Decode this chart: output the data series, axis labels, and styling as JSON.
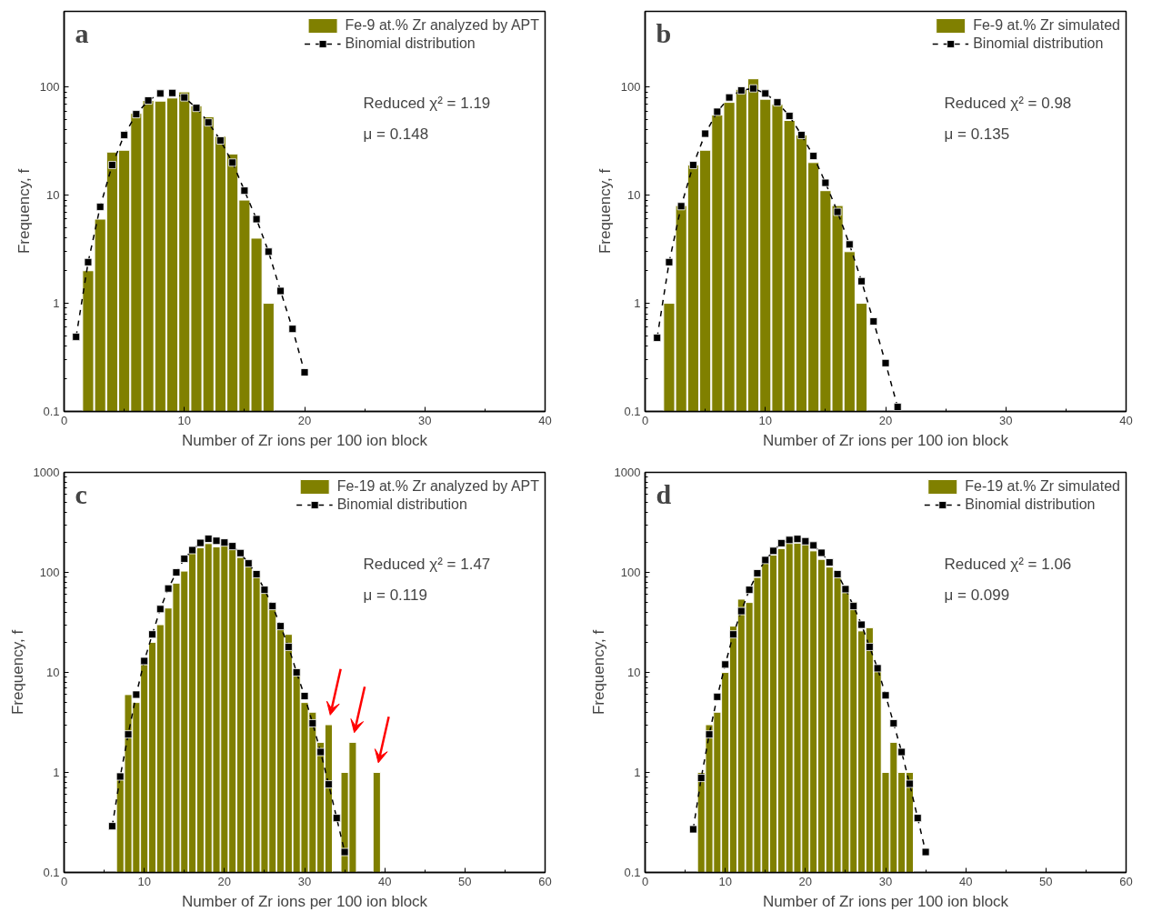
{
  "chart_data": [
    {
      "type": "bar",
      "title": "a",
      "xlabel": "Number of Zr ions per 100 ion block",
      "ylabel": "Frequency, f",
      "log": "y",
      "grid": false,
      "legend": "top right",
      "xlim": [
        0,
        40
      ],
      "ylim": [
        0.1,
        500
      ],
      "xticks": [
        0,
        10,
        20,
        30,
        40
      ],
      "yticks": [
        0.1,
        1,
        10,
        100
      ],
      "annotations": [
        "Reduced χ² = 1.19",
        "μ = 0.148"
      ],
      "series": [
        {
          "name": "Fe-9 at.% Zr analyzed by APT",
          "color": "#808000",
          "x": [
            2,
            3,
            4,
            5,
            6,
            7,
            8,
            9,
            10,
            11,
            12,
            13,
            14,
            15,
            16,
            17
          ],
          "values": [
            2,
            6,
            25,
            26,
            57,
            75,
            74,
            79,
            90,
            67,
            53,
            35,
            24,
            9,
            4,
            1
          ]
        },
        {
          "name": "Binomial distribution",
          "type": "line",
          "color": "#000000",
          "marker": "square",
          "line_style": "dashed",
          "x": [
            1,
            2,
            3,
            4,
            5,
            6,
            7,
            8,
            9,
            10,
            11,
            12,
            13,
            14,
            15,
            16,
            17,
            18,
            19,
            20
          ],
          "values": [
            0.49,
            2.4,
            7.8,
            19,
            36,
            56,
            75,
            87,
            88,
            80,
            64,
            47,
            32,
            20,
            11,
            6,
            3,
            1.3,
            0.58,
            0.23
          ]
        }
      ]
    },
    {
      "type": "bar",
      "title": "b",
      "xlabel": "Number of Zr ions per 100 ion block",
      "ylabel": "Frequency, f",
      "log": "y",
      "grid": false,
      "legend": "top right",
      "xlim": [
        0,
        40
      ],
      "ylim": [
        0.1,
        500
      ],
      "xticks": [
        0,
        10,
        20,
        30,
        40
      ],
      "yticks": [
        0.1,
        1,
        10,
        100
      ],
      "annotations": [
        "Reduced χ² = 0.98",
        "μ = 0.135"
      ],
      "series": [
        {
          "name": "Fe-9 at.% Zr simulated",
          "color": "#808000",
          "x": [
            2,
            3,
            4,
            5,
            6,
            7,
            8,
            9,
            10,
            11,
            12,
            13,
            14,
            15,
            16,
            17,
            18
          ],
          "values": [
            1,
            8,
            19,
            26,
            55,
            72,
            95,
            119,
            77,
            69,
            49,
            36,
            20,
            11,
            8,
            3,
            1
          ]
        },
        {
          "name": "Binomial distribution",
          "type": "line",
          "color": "#000000",
          "marker": "square",
          "line_style": "dashed",
          "x": [
            1,
            2,
            3,
            4,
            5,
            6,
            7,
            8,
            9,
            10,
            11,
            12,
            13,
            14,
            15,
            16,
            17,
            18,
            19,
            20,
            21
          ],
          "values": [
            0.48,
            2.4,
            7.9,
            19,
            37,
            59,
            80,
            93,
            97,
            87,
            72,
            54,
            36,
            23,
            13,
            7,
            3.5,
            1.6,
            0.68,
            0.28,
            0.11
          ]
        }
      ]
    },
    {
      "type": "bar",
      "title": "c",
      "xlabel": "Number of Zr ions per 100 ion block",
      "ylabel": "Frequency, f",
      "log": "y",
      "grid": false,
      "legend": "top right",
      "xlim": [
        0,
        60
      ],
      "ylim": [
        0.1,
        1000
      ],
      "xticks": [
        0,
        10,
        20,
        30,
        40,
        50,
        60
      ],
      "yticks": [
        0.1,
        1,
        10,
        100,
        1000
      ],
      "annotations": [
        "Reduced χ² = 1.47",
        "μ = 0.119"
      ],
      "series": [
        {
          "name": "Fe-19 at.% Zr analyzed by APT",
          "color": "#808000",
          "x": [
            7,
            8,
            9,
            10,
            11,
            12,
            13,
            14,
            15,
            16,
            17,
            18,
            19,
            20,
            21,
            22,
            23,
            24,
            25,
            26,
            27,
            28,
            29,
            30,
            31,
            32,
            33,
            35,
            36,
            39
          ],
          "values": [
            1,
            6,
            5,
            12,
            20,
            30,
            44,
            78,
            103,
            155,
            176,
            194,
            180,
            187,
            171,
            141,
            116,
            96,
            62,
            46,
            28,
            24,
            11,
            5,
            4,
            2,
            3,
            1,
            2,
            1
          ]
        },
        {
          "name": "Binomial distribution",
          "type": "line",
          "color": "#000000",
          "marker": "square",
          "line_style": "dashed",
          "x": [
            6,
            7,
            8,
            9,
            10,
            11,
            12,
            13,
            14,
            15,
            16,
            17,
            18,
            19,
            20,
            21,
            22,
            23,
            24,
            25,
            26,
            27,
            28,
            29,
            30,
            31,
            32,
            33,
            34,
            35
          ],
          "values": [
            0.29,
            0.91,
            2.4,
            6,
            13,
            24,
            43,
            69,
            100,
            137,
            167,
            197,
            217,
            207,
            199,
            183,
            156,
            123,
            96,
            67,
            46,
            29,
            18,
            10,
            5.8,
            3.1,
            1.6,
            0.76,
            0.35,
            0.16
          ]
        }
      ]
    },
    {
      "type": "bar",
      "title": "d",
      "xlabel": "Number of Zr ions per 100 ion block",
      "ylabel": "Frequency, f",
      "log": "y",
      "grid": false,
      "legend": "top right",
      "xlim": [
        0,
        60
      ],
      "ylim": [
        0.1,
        1000
      ],
      "xticks": [
        0,
        10,
        20,
        30,
        40,
        50,
        60
      ],
      "yticks": [
        0.1,
        1,
        10,
        100,
        1000
      ],
      "annotations": [
        "Reduced χ² = 1.06",
        "μ = 0.099"
      ],
      "series": [
        {
          "name": "Fe-19 at.% Zr simulated",
          "color": "#808000",
          "x": [
            7,
            8,
            9,
            10,
            11,
            12,
            13,
            14,
            15,
            16,
            17,
            18,
            19,
            20,
            21,
            22,
            23,
            24,
            25,
            26,
            27,
            28,
            29,
            30,
            31,
            32,
            33
          ],
          "values": [
            1,
            3,
            4,
            10,
            29,
            54,
            50,
            89,
            124,
            149,
            173,
            196,
            196,
            190,
            164,
            135,
            113,
            89,
            63,
            51,
            26,
            28,
            11,
            1,
            2,
            1,
            1
          ]
        },
        {
          "name": "Binomial distribution",
          "type": "line",
          "color": "#000000",
          "marker": "square",
          "line_style": "dashed",
          "x": [
            6,
            7,
            8,
            9,
            10,
            11,
            12,
            13,
            14,
            15,
            16,
            17,
            18,
            19,
            20,
            21,
            22,
            23,
            24,
            25,
            26,
            27,
            28,
            29,
            30,
            31,
            32,
            33,
            34,
            35
          ],
          "values": [
            0.27,
            0.88,
            2.4,
            5.7,
            12,
            24,
            41,
            67,
            98,
            133,
            164,
            196,
            211,
            216,
            205,
            186,
            157,
            126,
            96,
            68,
            46,
            30,
            18,
            11,
            5.9,
            3.1,
            1.6,
            0.77,
            0.35,
            0.16
          ]
        }
      ]
    }
  ]
}
